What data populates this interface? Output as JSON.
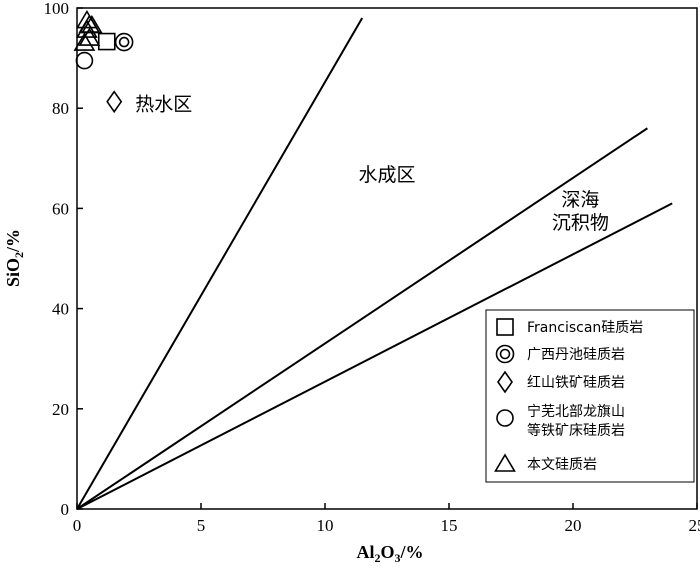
{
  "chart_data": {
    "type": "scatter",
    "title": "",
    "xlabel": {
      "base": "Al",
      "sub1": "2",
      "mid": "O",
      "sub2": "3",
      "tail": "/%"
    },
    "ylabel": {
      "base": "SiO",
      "sub": "2",
      "tail": "/%"
    },
    "xlim": [
      0,
      25
    ],
    "ylim": [
      0,
      100
    ],
    "x_ticks": [
      0,
      5,
      10,
      15,
      20,
      25
    ],
    "y_ticks": [
      0,
      20,
      40,
      60,
      80,
      100
    ],
    "grid": false,
    "legend_position": "bottom-right",
    "boundary_lines": [
      {
        "x": [
          0,
          11.5
        ],
        "y": [
          0,
          98
        ]
      },
      {
        "x": [
          0,
          23
        ],
        "y": [
          0,
          76
        ]
      },
      {
        "x": [
          0,
          24
        ],
        "y": [
          0,
          61
        ]
      }
    ],
    "region_labels": [
      {
        "lines": [
          "热水区"
        ],
        "x": 3.5,
        "y": 79.5
      },
      {
        "lines": [
          "水成区"
        ],
        "x": 12.5,
        "y": 65.5
      },
      {
        "lines": [
          "深海",
          "沉积物"
        ],
        "x": 20.3,
        "y": 60.5
      }
    ],
    "series": [
      {
        "name": "Franciscan硅质岩",
        "marker": "square",
        "points": [
          [
            1.2,
            93.3
          ]
        ]
      },
      {
        "name": "广西丹池硅质岩",
        "marker": "double-circle",
        "points": [
          [
            1.9,
            93.2
          ]
        ]
      },
      {
        "name": "红山铁矿硅质岩",
        "marker": "diamond",
        "points": [
          [
            1.5,
            81.3
          ]
        ]
      },
      {
        "name": "宁芜北部龙旗山\n等铁矿床硅质岩",
        "marker": "circle",
        "points": [
          [
            0.3,
            89.5
          ]
        ]
      },
      {
        "name": "本文硅质岩",
        "marker": "triangle",
        "points": [
          [
            0.4,
            97.5
          ],
          [
            0.5,
            96.6
          ],
          [
            0.4,
            95.6
          ],
          [
            0.5,
            94.0
          ],
          [
            0.3,
            93.0
          ],
          [
            0.6,
            96.5
          ]
        ]
      }
    ]
  }
}
